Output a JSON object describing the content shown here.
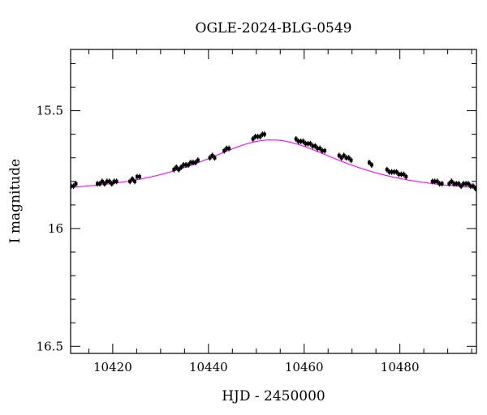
{
  "chart_data": {
    "type": "scatter",
    "title": "OGLE-2024-BLG-0549",
    "xlabel": "HJD - 2450000",
    "ylabel": "I magnitude",
    "xlim": [
      10411.2,
      10496.0
    ],
    "ylim": [
      16.53,
      15.24
    ],
    "y_inverted": true,
    "x_major_ticks": [
      10420,
      10440,
      10460,
      10480
    ],
    "x_tick_labels": [
      "10420",
      "10440",
      "10460",
      "10480"
    ],
    "y_major_ticks": [
      15.5,
      16.0,
      16.5
    ],
    "y_tick_labels": [
      "15.5",
      "16",
      "16.5"
    ],
    "x_minor_step": 5,
    "y_minor_step": 0.1,
    "grid": false,
    "colors": {
      "points": "#000000",
      "model": "#ff00ff"
    },
    "series": [
      {
        "kind": "points_with_errorbars",
        "x": [
          10411.3,
          10411.8,
          10412.3,
          10416.8,
          10417.3,
          10417.8,
          10418.3,
          10418.8,
          10419.3,
          10419.8,
          10420.3,
          10420.8,
          10423.6,
          10424.1,
          10424.6,
          10425.1,
          10425.6,
          10432.8,
          10433.3,
          10433.8,
          10434.3,
          10434.8,
          10435.3,
          10435.8,
          10436.3,
          10436.8,
          10437.3,
          10437.8,
          10440.3,
          10440.8,
          10441.3,
          10443.3,
          10443.8,
          10444.3,
          10449.3,
          10449.8,
          10450.3,
          10450.8,
          10451.3,
          10451.7,
          10458.3,
          10458.8,
          10459.3,
          10459.8,
          10460.3,
          10460.8,
          10461.3,
          10461.8,
          10462.3,
          10462.8,
          10463.3,
          10463.8,
          10464.3,
          10467.3,
          10467.8,
          10468.3,
          10468.8,
          10469.3,
          10469.8,
          10473.6,
          10474.1,
          10477.3,
          10477.8,
          10478.3,
          10478.8,
          10479.3,
          10479.8,
          10480.3,
          10480.8,
          10481.3,
          10486.8,
          10487.3,
          10487.8,
          10488.3,
          10488.8,
          10490.3,
          10490.8,
          10491.3,
          10491.8,
          10492.3,
          10492.8,
          10493.3,
          10493.8,
          10494.3,
          10494.8,
          10495.3,
          10495.8
        ],
        "y": [
          15.82,
          15.82,
          15.81,
          15.81,
          15.81,
          15.8,
          15.81,
          15.8,
          15.8,
          15.81,
          15.8,
          15.8,
          15.8,
          15.79,
          15.8,
          15.78,
          15.78,
          15.75,
          15.74,
          15.75,
          15.74,
          15.73,
          15.73,
          15.73,
          15.72,
          15.72,
          15.72,
          15.71,
          15.7,
          15.69,
          15.7,
          15.67,
          15.66,
          15.66,
          15.62,
          15.61,
          15.61,
          15.61,
          15.6,
          15.6,
          15.62,
          15.63,
          15.63,
          15.63,
          15.64,
          15.64,
          15.64,
          15.65,
          15.65,
          15.66,
          15.66,
          15.67,
          15.67,
          15.69,
          15.7,
          15.69,
          15.7,
          15.7,
          15.71,
          15.72,
          15.73,
          15.75,
          15.76,
          15.76,
          15.76,
          15.76,
          15.77,
          15.77,
          15.77,
          15.78,
          15.8,
          15.8,
          15.8,
          15.81,
          15.81,
          15.81,
          15.8,
          15.81,
          15.81,
          15.81,
          15.82,
          15.81,
          15.81,
          15.81,
          15.82,
          15.82,
          15.83
        ],
        "yerr": 0.012
      },
      {
        "kind": "model_curve",
        "peak_time": 10453.2,
        "peak_mag": 15.624,
        "baseline_mag": 15.847,
        "tE": 20.0,
        "u0": 0.8
      }
    ]
  }
}
